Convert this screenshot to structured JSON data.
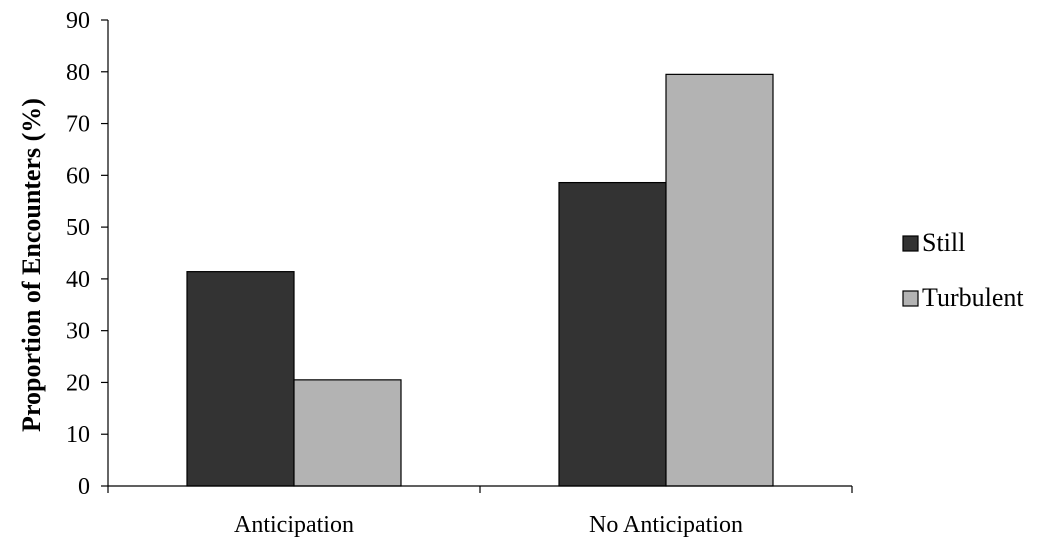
{
  "chart_data": {
    "type": "bar",
    "title": "",
    "xlabel": "",
    "ylabel": "Proportion of Encounters (%)",
    "ylim": [
      0,
      90
    ],
    "yticks": [
      0,
      10,
      20,
      30,
      40,
      50,
      60,
      70,
      80,
      90
    ],
    "categories": [
      "Anticipation",
      "No Anticipation"
    ],
    "series": [
      {
        "name": "Still",
        "values": [
          41.4,
          58.6
        ],
        "color": "#333333"
      },
      {
        "name": "Turbulent",
        "values": [
          20.5,
          79.5
        ],
        "color": "#b3b3b3"
      }
    ],
    "grid": false,
    "legend_position": "right"
  }
}
